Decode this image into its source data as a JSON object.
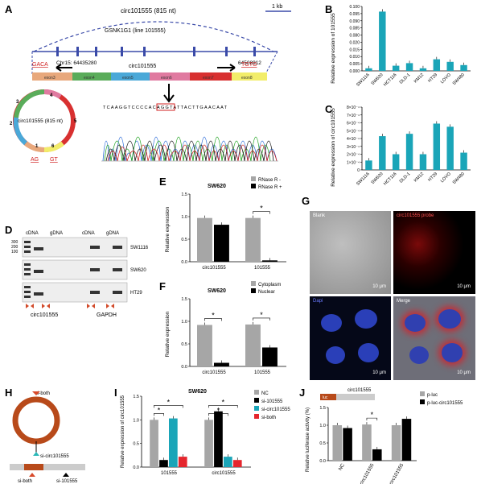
{
  "panels": {
    "A": {
      "letter": "A",
      "arc_label": "circ101555 (815 nt)",
      "scale_label": "1 kb",
      "gene_label": "GSNK1G1 (line 101555)",
      "chr_label": "Chr15: 64435280",
      "chr_end": "64508912",
      "exon_row_label": "circ101555",
      "splice_left": "GACA",
      "splice_right": "TGTG",
      "exons": [
        "exon3",
        "exon4",
        "exon5",
        "exon6",
        "exon7",
        "exon8"
      ],
      "circle_label": "circ101555 (815 nt)",
      "circle_ag": "AG",
      "circle_gt": "GT",
      "circle_numbers": [
        "1",
        "2",
        "3",
        "4",
        "5",
        "6"
      ],
      "sequence": "TCAAGGTCCCCACAGGTATTACTTGAACAAT"
    },
    "B": {
      "letter": "B",
      "ylabel": "Relative expression of 101555"
    },
    "C": {
      "letter": "C",
      "ylabel": "Relative expression of circ101555"
    },
    "D": {
      "letter": "D",
      "col_labels": [
        "cDNA",
        "gDNA",
        "cDNA",
        "gDNA"
      ],
      "sizes": [
        "300",
        "200",
        "100"
      ],
      "rows": [
        "SW1116",
        "SW620",
        "HT29"
      ],
      "bottom_labels": [
        "circ101555",
        "GAPDH"
      ]
    },
    "E": {
      "letter": "E",
      "title": "SW620",
      "ylabel": "Relative expression",
      "legend": [
        "RNase R -",
        "RNase R +"
      ],
      "star": "*"
    },
    "F": {
      "letter": "F",
      "title": "SW620",
      "ylabel": "Relative expression",
      "legend": [
        "Cytoplasm",
        "Nuclear"
      ],
      "star": "*"
    },
    "G": {
      "letter": "G",
      "quadrants": [
        "Blank",
        "circ101555 probe",
        "Dapi",
        "Merge"
      ],
      "scale": "10 μm"
    },
    "H": {
      "letter": "H",
      "labels": [
        "si-both",
        "si-circ101555",
        "si-both",
        "si-101555"
      ]
    },
    "I": {
      "letter": "I",
      "title": "SW620",
      "ylabel": "Relative expression of circ101555",
      "legend": [
        "NC",
        "si-101555",
        "si-circ101555",
        "si-both"
      ],
      "star": "*"
    },
    "J": {
      "letter": "J",
      "ylabel": "Relative luciferase activity (%)",
      "legend": [
        "p-luc",
        "p-luc-circ101555"
      ],
      "construct": "circ101555",
      "box_label": "luc",
      "star": "*"
    }
  },
  "chart_data": [
    {
      "type": "bar",
      "id": "B",
      "categories": [
        "SW1116",
        "SW620",
        "HCT116",
        "DLD-1",
        "KM12",
        "HT29",
        "LOVO",
        "SW480"
      ],
      "values": [
        0.004,
        0.092,
        0.008,
        0.012,
        0.004,
        0.018,
        0.014,
        0.009
      ],
      "yticks": [
        "0.000",
        "0.005",
        "0.010",
        "0.015",
        "0.020",
        "0.080",
        "0.085",
        "0.090",
        "0.095",
        "0.100"
      ],
      "ylim": [
        0,
        0.1
      ],
      "color": "#1aa5b8"
    },
    {
      "type": "bar",
      "id": "C",
      "categories": [
        "SW1116",
        "SW620",
        "HCT116",
        "DLD-1",
        "KM12",
        "HT29",
        "LOVO",
        "SW480"
      ],
      "values": [
        1.2,
        4.3,
        2.0,
        4.6,
        2.0,
        5.9,
        5.5,
        2.2
      ],
      "yticks": [
        "0",
        "1×10⁻⁴",
        "2×10⁻⁴",
        "3×10⁻⁴",
        "4×10⁻⁴",
        "5×10⁻⁴",
        "6×10⁻⁴",
        "7×10⁻⁴",
        "8×10⁻⁴"
      ],
      "ylim": [
        0,
        8
      ],
      "color": "#1aa5b8"
    },
    {
      "type": "bar",
      "id": "E",
      "categories": [
        "circ101555",
        "101555"
      ],
      "series": [
        {
          "name": "RNase R -",
          "values": [
            0.97,
            0.97
          ],
          "color": "#a6a6a6"
        },
        {
          "name": "RNase R +",
          "values": [
            0.82,
            0.03
          ],
          "color": "#000000"
        }
      ],
      "yticks": [
        "0.0",
        "0.5",
        "1.0",
        "1.5"
      ],
      "ylim": [
        0,
        1.5
      ]
    },
    {
      "type": "bar",
      "id": "F",
      "categories": [
        "circ101555",
        "101555"
      ],
      "series": [
        {
          "name": "Cytoplasm",
          "values": [
            0.92,
            0.93
          ],
          "color": "#a6a6a6"
        },
        {
          "name": "Nuclear",
          "values": [
            0.08,
            0.42
          ],
          "color": "#000000"
        }
      ],
      "yticks": [
        "0.0",
        "0.5",
        "1.0",
        "1.5"
      ],
      "ylim": [
        0,
        1.5
      ]
    },
    {
      "type": "bar",
      "id": "I",
      "categories": [
        "101555",
        "circ101555"
      ],
      "series": [
        {
          "name": "NC",
          "values": [
            1.0,
            1.0
          ],
          "color": "#a6a6a6"
        },
        {
          "name": "si-101555",
          "values": [
            0.15,
            1.18
          ],
          "color": "#000000"
        },
        {
          "name": "si-circ101555",
          "values": [
            1.03,
            0.22
          ],
          "color": "#1aa5b8"
        },
        {
          "name": "si-both",
          "values": [
            0.22,
            0.15
          ],
          "color": "#e5262d"
        }
      ],
      "yticks": [
        "0.0",
        "0.5",
        "1.0",
        "1.5"
      ],
      "ylim": [
        0,
        1.5
      ]
    },
    {
      "type": "bar",
      "id": "J",
      "categories": [
        "NC",
        "si-circ101555",
        "p-circ101555"
      ],
      "series": [
        {
          "name": "p-luc",
          "values": [
            1.0,
            1.02,
            1.0
          ],
          "color": "#a6a6a6"
        },
        {
          "name": "p-luc-circ101555",
          "values": [
            0.92,
            0.32,
            1.18
          ],
          "color": "#000000"
        }
      ],
      "yticks": [
        "0.0",
        "0.5",
        "1.0",
        "1.5"
      ],
      "ylim": [
        0,
        1.5
      ]
    }
  ]
}
